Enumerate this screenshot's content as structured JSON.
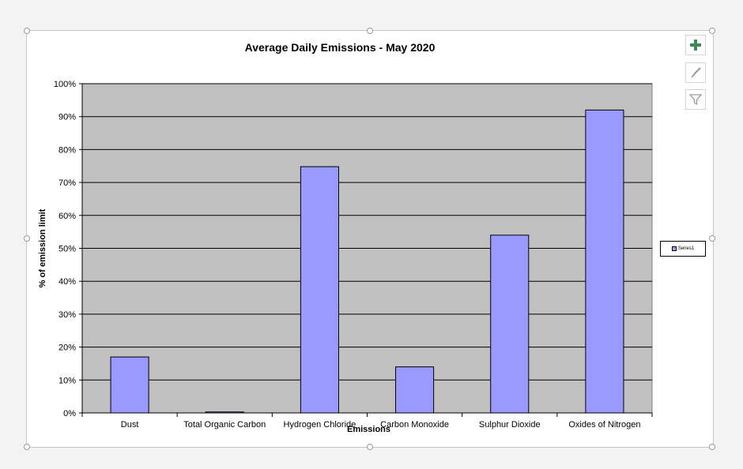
{
  "chart_data": {
    "type": "bar",
    "title": "Average Daily Emissions - May 2020",
    "xlabel": "Emissions",
    "ylabel": "% of emission limit",
    "categories": [
      "Dust",
      "Total Organic Carbon",
      "Hydrogen Chloride",
      "Carbon Monoxide",
      "Sulphur Dioxide",
      "Oxides of Nitrogen"
    ],
    "series": [
      {
        "name": "Series1",
        "values": [
          17,
          0.3,
          74.8,
          14,
          54,
          92
        ]
      }
    ],
    "ylim": [
      0,
      100
    ],
    "yticks": [
      "0%",
      "10%",
      "20%",
      "30%",
      "40%",
      "50%",
      "60%",
      "70%",
      "80%",
      "90%",
      "100%"
    ],
    "grid": true,
    "legend": "right",
    "colors": {
      "bar": "#9999ff",
      "plot_background": "#c0c0c0",
      "bar_outline": "#000000"
    }
  },
  "toolbar": {
    "add_icon": "plus-icon",
    "style_icon": "brush-icon",
    "filter_icon": "funnel-icon"
  }
}
